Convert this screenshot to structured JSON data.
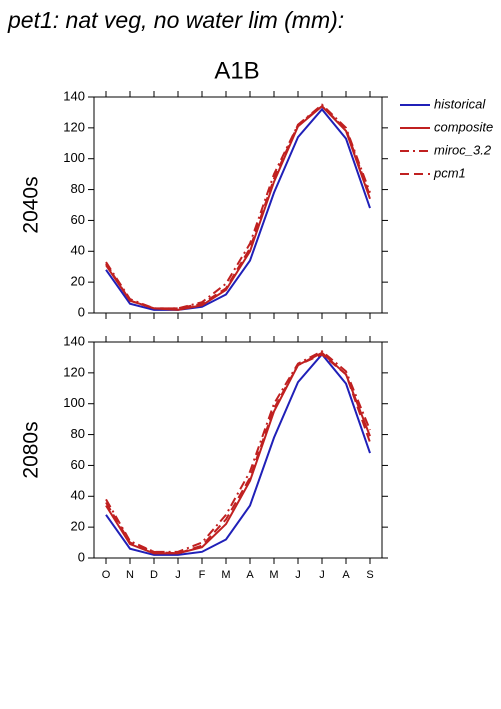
{
  "chart_data": [
    {
      "type": "line",
      "title": "pet1: nat veg, no water lim (mm):",
      "subtitle": "A1B",
      "ylabel": "2040s",
      "ylim": [
        0,
        140
      ],
      "yticks": [
        0,
        20,
        40,
        60,
        80,
        100,
        120,
        140
      ],
      "series": [
        {
          "name": "historical",
          "color": "#2020b8",
          "dash": "solid",
          "values": [
            28,
            6,
            2,
            2,
            4,
            12,
            34,
            78,
            114,
            132,
            113,
            68
          ]
        },
        {
          "name": "composite",
          "color": "#c02020",
          "dash": "solid",
          "values": [
            31,
            8,
            3,
            2,
            5,
            15,
            40,
            85,
            121,
            134,
            118,
            74
          ]
        },
        {
          "name": "miroc_3.2",
          "color": "#c02020",
          "dash": "dashdot",
          "values": [
            33,
            9,
            3,
            3,
            7,
            19,
            45,
            90,
            122,
            135,
            120,
            78
          ]
        },
        {
          "name": "pcm1",
          "color": "#c02020",
          "dash": "dash",
          "values": [
            32,
            8,
            3,
            3,
            6,
            16,
            42,
            87,
            122,
            134,
            119,
            76
          ]
        }
      ]
    },
    {
      "type": "line",
      "ylabel": "2080s",
      "categories": [
        "O",
        "N",
        "D",
        "J",
        "F",
        "M",
        "A",
        "M",
        "J",
        "J",
        "A",
        "S"
      ],
      "ylim": [
        0,
        140
      ],
      "yticks": [
        0,
        20,
        40,
        60,
        80,
        100,
        120,
        140
      ],
      "series": [
        {
          "color": "#2020b8",
          "dash": "solid",
          "values": [
            28,
            6,
            2,
            2,
            4,
            12,
            34,
            78,
            114,
            132,
            113,
            68
          ]
        },
        {
          "color": "#c02020",
          "dash": "solid",
          "values": [
            34,
            9,
            3,
            3,
            7,
            22,
            50,
            95,
            125,
            133,
            119,
            79
          ]
        },
        {
          "color": "#c02020",
          "dash": "dashdot",
          "values": [
            38,
            11,
            4,
            4,
            10,
            28,
            56,
            100,
            126,
            134,
            121,
            83
          ]
        },
        {
          "color": "#c02020",
          "dash": "dash",
          "values": [
            36,
            10,
            4,
            3,
            8,
            25,
            52,
            97,
            125,
            132,
            119,
            75
          ]
        }
      ]
    }
  ]
}
